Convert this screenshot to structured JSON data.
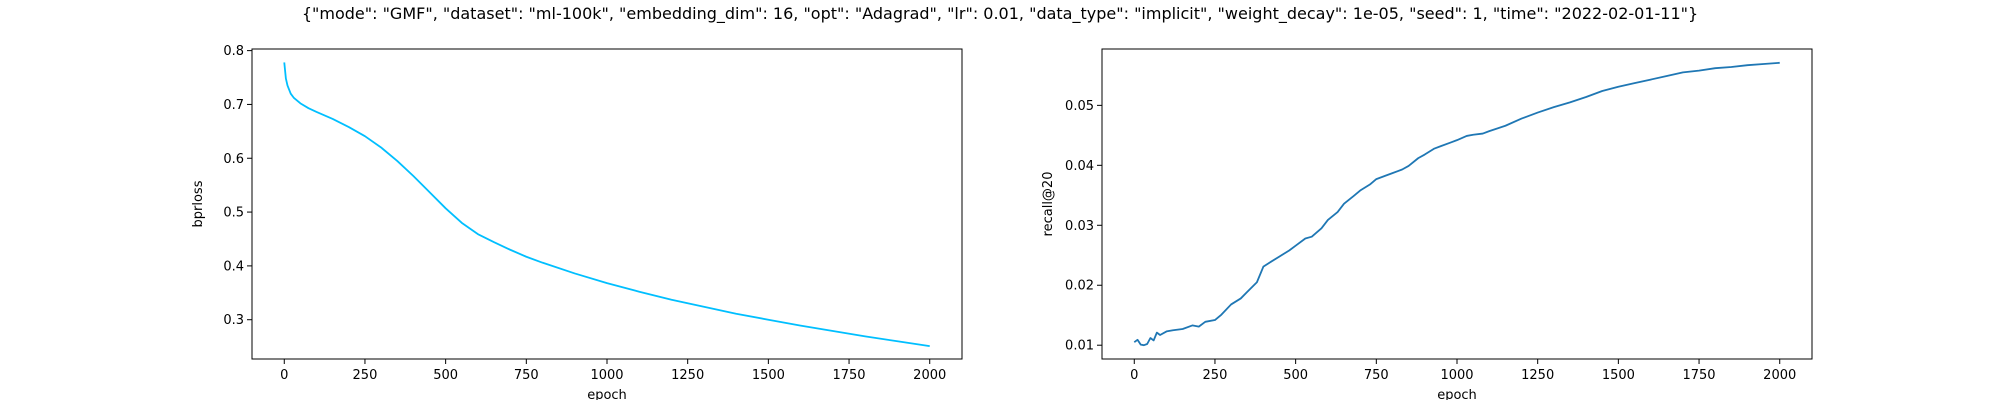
{
  "suptitle": "{\"mode\": \"GMF\", \"dataset\": \"ml-100k\", \"embedding_dim\": 16, \"opt\": \"Adagrad\", \"lr\": 0.01, \"data_type\": \"implicit\", \"weight_decay\": 1e-05, \"seed\": 1, \"time\": \"2022-02-01-11\"}",
  "chart_data": [
    {
      "type": "line",
      "xlabel": "epoch",
      "ylabel": "bprloss",
      "xlim": [
        -100,
        2100
      ],
      "ylim": [
        0.227,
        0.803
      ],
      "xticks": [
        0,
        250,
        500,
        750,
        1000,
        1250,
        1500,
        1750,
        2000
      ],
      "yticks": [
        0.3,
        0.4,
        0.5,
        0.6,
        0.7,
        0.8
      ],
      "ytick_labels": [
        "0.3",
        "0.4",
        "0.5",
        "0.6",
        "0.7",
        "0.8"
      ],
      "grid": false,
      "color": "#00BFFF",
      "series": [
        {
          "x": [
            0,
            5,
            10,
            20,
            30,
            50,
            75,
            100,
            150,
            200,
            250,
            300,
            350,
            400,
            450,
            500,
            550,
            600,
            650,
            700,
            750,
            800,
            900,
            1000,
            1100,
            1200,
            1300,
            1400,
            1500,
            1600,
            1700,
            1800,
            1900,
            2000
          ],
          "values": [
            0.778,
            0.748,
            0.735,
            0.72,
            0.712,
            0.702,
            0.693,
            0.686,
            0.673,
            0.658,
            0.641,
            0.62,
            0.595,
            0.567,
            0.537,
            0.507,
            0.48,
            0.459,
            0.444,
            0.43,
            0.417,
            0.406,
            0.386,
            0.368,
            0.352,
            0.337,
            0.324,
            0.311,
            0.3,
            0.289,
            0.279,
            0.269,
            0.26,
            0.251
          ]
        }
      ]
    },
    {
      "type": "line",
      "xlabel": "epoch",
      "ylabel": "recall@20",
      "xlim": [
        -100,
        2100
      ],
      "ylim": [
        0.0077,
        0.0594
      ],
      "xticks": [
        0,
        250,
        500,
        750,
        1000,
        1250,
        1500,
        1750,
        2000
      ],
      "yticks": [
        0.01,
        0.02,
        0.03,
        0.04,
        0.05
      ],
      "ytick_labels": [
        "0.01",
        "0.02",
        "0.03",
        "0.04",
        "0.05"
      ],
      "grid": false,
      "color": "#1f77b4",
      "series": [
        {
          "x": [
            0,
            10,
            20,
            30,
            40,
            50,
            60,
            70,
            80,
            100,
            120,
            150,
            180,
            200,
            220,
            250,
            270,
            300,
            330,
            350,
            380,
            400,
            420,
            450,
            480,
            500,
            530,
            550,
            580,
            600,
            630,
            650,
            680,
            700,
            730,
            750,
            780,
            800,
            830,
            850,
            880,
            900,
            930,
            950,
            980,
            1000,
            1030,
            1050,
            1080,
            1100,
            1150,
            1200,
            1250,
            1300,
            1350,
            1400,
            1450,
            1500,
            1550,
            1600,
            1650,
            1700,
            1750,
            1800,
            1850,
            1900,
            1950,
            2000
          ],
          "values": [
            0.0105,
            0.0109,
            0.0101,
            0.01,
            0.0102,
            0.0112,
            0.0108,
            0.0121,
            0.0117,
            0.0123,
            0.0125,
            0.0127,
            0.0133,
            0.0131,
            0.0139,
            0.0142,
            0.0151,
            0.0168,
            0.0178,
            0.0189,
            0.0205,
            0.0231,
            0.0238,
            0.0248,
            0.0258,
            0.0266,
            0.0278,
            0.0281,
            0.0295,
            0.0309,
            0.0322,
            0.0336,
            0.0349,
            0.0358,
            0.0368,
            0.0377,
            0.0383,
            0.0387,
            0.0393,
            0.0399,
            0.0412,
            0.0418,
            0.0428,
            0.0432,
            0.0438,
            0.0442,
            0.0449,
            0.0451,
            0.0453,
            0.0457,
            0.0466,
            0.0478,
            0.0488,
            0.0497,
            0.0505,
            0.0514,
            0.0524,
            0.0531,
            0.0537,
            0.0543,
            0.0549,
            0.0555,
            0.0558,
            0.0562,
            0.0564,
            0.0567,
            0.0569,
            0.0571
          ]
        }
      ]
    }
  ]
}
